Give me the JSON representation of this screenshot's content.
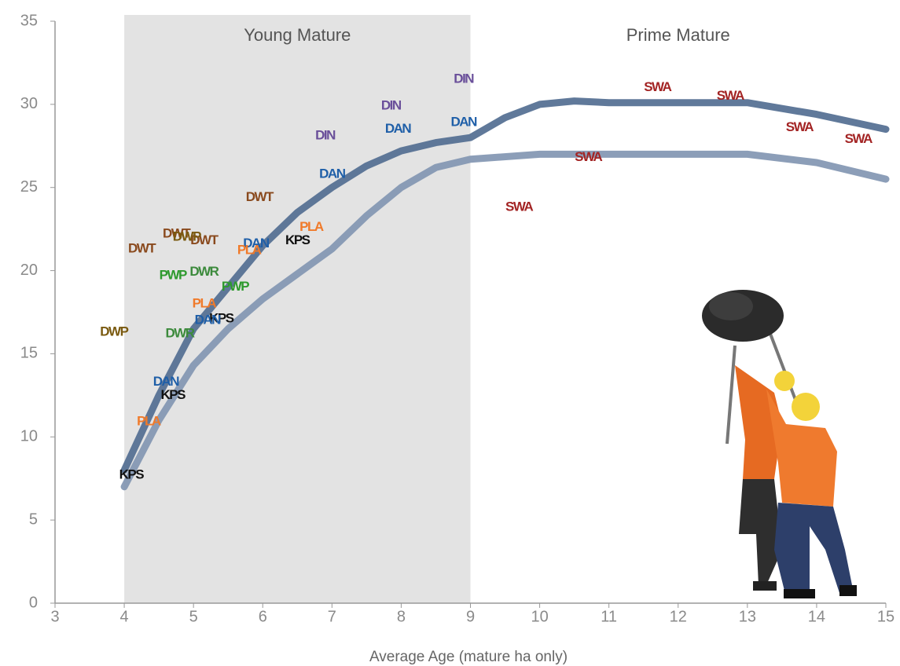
{
  "chart_data": {
    "type": "scatter",
    "x_label": "Average  Age (mature ha only)",
    "xlim": [
      3,
      15
    ],
    "xticks": [
      3,
      4,
      5,
      6,
      7,
      8,
      9,
      10,
      11,
      12,
      13,
      14,
      15
    ],
    "ylim": [
      0,
      35
    ],
    "yticks": [
      0,
      5,
      10,
      15,
      20,
      25,
      30,
      35
    ],
    "grid": false,
    "regions": [
      {
        "label": "Young Mature",
        "x": [
          4,
          9
        ],
        "color": "#e3e3e3"
      },
      {
        "label": "Prime Mature",
        "x": [
          9,
          15
        ],
        "color": "#ffffff"
      }
    ],
    "curves": [
      {
        "color": "#4f6a8f",
        "x": [
          4,
          4.5,
          5,
          5.5,
          6,
          6.5,
          7,
          7.5,
          8,
          8.5,
          9,
          9.5,
          10,
          10.5,
          11,
          12,
          13,
          14,
          15
        ],
        "values": [
          8,
          12.5,
          16.5,
          19,
          21.5,
          23.5,
          25,
          26.3,
          27.2,
          27.7,
          28,
          29.2,
          30,
          30.2,
          30.1,
          30.1,
          30.1,
          29.4,
          28.5
        ]
      },
      {
        "color": "#8094b0",
        "x": [
          4,
          4.5,
          5,
          5.5,
          6,
          6.5,
          7,
          7.5,
          8,
          8.5,
          9,
          10,
          11,
          12,
          13,
          14,
          15
        ],
        "values": [
          7,
          11,
          14.3,
          16.5,
          18.3,
          19.8,
          21.3,
          23.3,
          25,
          26.2,
          26.7,
          27,
          27,
          27,
          27,
          26.5,
          25.5
        ]
      }
    ],
    "series": [
      {
        "name": "KPS",
        "color": "#111111",
        "x": [
          4.1,
          4.7,
          5.4,
          6.5
        ],
        "values": [
          7.7,
          12.5,
          17.1,
          21.8
        ]
      },
      {
        "name": "DAN",
        "color": "#1f5fa8",
        "x": [
          4.6,
          5.2,
          5.9,
          7,
          7.95,
          8.9
        ],
        "values": [
          13.3,
          17,
          21.6,
          25.8,
          28.5,
          28.9
        ]
      },
      {
        "name": "DIN",
        "color": "#6a4f9a",
        "x": [
          6.9,
          7.85,
          8.9
        ],
        "values": [
          28.1,
          29.9,
          31.5
        ]
      },
      {
        "name": "DWT",
        "color": "#8a4a1e",
        "x": [
          4.25,
          4.75,
          5.15,
          5.95
        ],
        "values": [
          21.3,
          22.2,
          21.8,
          24.4
        ]
      },
      {
        "name": "DWP",
        "color": "#7a5a10",
        "x": [
          3.85,
          4.9
        ],
        "values": [
          16.3,
          22
        ]
      },
      {
        "name": "PWP",
        "color": "#2e9a2e",
        "x": [
          4.7,
          5.6
        ],
        "values": [
          19.7,
          19
        ]
      },
      {
        "name": "DWR",
        "color": "#3c8a3c",
        "x": [
          5.15,
          4.8
        ],
        "values": [
          19.9,
          16.2
        ]
      },
      {
        "name": "PLA",
        "color": "#f07a2a",
        "x": [
          4.35,
          5.15,
          5.8,
          6.7
        ],
        "values": [
          10.9,
          18,
          21.2,
          22.6
        ]
      },
      {
        "name": "SWA",
        "color": "#a32424",
        "x": [
          9.7,
          10.7,
          11.7,
          12.75,
          13.75,
          14.6
        ],
        "values": [
          23.8,
          26.8,
          31,
          30.5,
          28.6,
          27.9
        ]
      }
    ]
  }
}
